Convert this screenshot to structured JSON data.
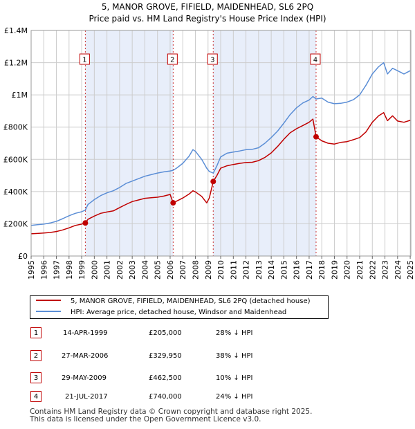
{
  "title": {
    "line1": "5, MANOR GROVE, FIFIELD, MAIDENHEAD, SL6 2PQ",
    "line2": "Price paid vs. HM Land Registry's House Price Index (HPI)"
  },
  "colors": {
    "price_line": "#c00000",
    "hpi_line": "#5b8ed6",
    "shade": "#e8eefa",
    "grid": "#cccccc",
    "marker_border": "#c00000",
    "marker_fill": "#c00000"
  },
  "chart_data": {
    "type": "line",
    "title": "5, MANOR GROVE, FIFIELD, MAIDENHEAD, SL6 2PQ",
    "subtitle": "Price paid vs. HM Land Registry's House Price Index (HPI)",
    "xlabel": "",
    "ylabel": "",
    "xlim": [
      1995.0,
      2025.05
    ],
    "ylim": [
      0,
      1400000
    ],
    "x_ticks": [
      1995,
      1996,
      1997,
      1998,
      1999,
      2000,
      2001,
      2002,
      2003,
      2004,
      2005,
      2006,
      2007,
      2008,
      2009,
      2010,
      2011,
      2012,
      2013,
      2014,
      2015,
      2016,
      2017,
      2018,
      2019,
      2020,
      2021,
      2022,
      2023,
      2024,
      2025
    ],
    "x_tick_labels": [
      "1995",
      "1996",
      "1997",
      "1998",
      "1999",
      "2000",
      "2001",
      "2002",
      "2003",
      "2004",
      "2005",
      "2006",
      "2007",
      "2008",
      "2009",
      "2010",
      "2011",
      "2012",
      "2013",
      "2014",
      "2015",
      "2016",
      "2017",
      "2018",
      "2019",
      "2020",
      "2021",
      "2022",
      "2023",
      "2024",
      "2025"
    ],
    "y_ticks": [
      0,
      200000,
      400000,
      600000,
      800000,
      1000000,
      1200000,
      1400000
    ],
    "y_tick_labels": [
      "£0",
      "£200K",
      "£400K",
      "£600K",
      "£800K",
      "£1M",
      "£1.2M",
      "£1.4M"
    ],
    "grid": true,
    "series": [
      {
        "name": "5, MANOR GROVE, FIFIELD, MAIDENHEAD, SL6 2PQ (detached house)",
        "x": [
          1995.0,
          1995.5,
          1996.0,
          1996.5,
          1997.0,
          1997.5,
          1998.0,
          1998.5,
          1999.0,
          1999.29,
          1999.5,
          2000.0,
          2000.5,
          2001.0,
          2001.5,
          2002.0,
          2002.5,
          2003.0,
          2003.5,
          2004.0,
          2004.5,
          2005.0,
          2005.5,
          2006.0,
          2006.24,
          2006.5,
          2007.0,
          2007.5,
          2007.8,
          2008.0,
          2008.5,
          2008.9,
          2009.1,
          2009.41,
          2009.7,
          2010.0,
          2010.5,
          2011.0,
          2011.5,
          2012.0,
          2012.5,
          2013.0,
          2013.5,
          2014.0,
          2014.5,
          2015.0,
          2015.5,
          2016.0,
          2016.5,
          2017.0,
          2017.3,
          2017.55,
          2018.0,
          2018.5,
          2019.0,
          2019.5,
          2020.0,
          2020.5,
          2021.0,
          2021.5,
          2022.0,
          2022.5,
          2022.9,
          2023.2,
          2023.6,
          2024.0,
          2024.5,
          2025.0
        ],
        "values": [
          138000,
          140000,
          143000,
          146000,
          152000,
          162000,
          175000,
          190000,
          198000,
          205000,
          228000,
          248000,
          265000,
          273000,
          280000,
          300000,
          320000,
          338000,
          348000,
          358000,
          362000,
          365000,
          372000,
          382000,
          329950,
          340000,
          360000,
          385000,
          405000,
          398000,
          370000,
          330000,
          360000,
          462500,
          500000,
          545000,
          560000,
          568000,
          575000,
          580000,
          582000,
          592000,
          612000,
          640000,
          680000,
          725000,
          765000,
          790000,
          810000,
          830000,
          850000,
          740000,
          715000,
          700000,
          695000,
          705000,
          710000,
          722000,
          735000,
          770000,
          830000,
          870000,
          890000,
          840000,
          870000,
          838000,
          830000,
          842000
        ]
      },
      {
        "name": "HPI: Average price, detached house, Windsor and Maidenhead",
        "x": [
          1995.0,
          1995.5,
          1996.0,
          1996.5,
          1997.0,
          1997.5,
          1998.0,
          1998.5,
          1999.0,
          1999.29,
          1999.5,
          2000.0,
          2000.5,
          2001.0,
          2001.5,
          2002.0,
          2002.5,
          2003.0,
          2003.5,
          2004.0,
          2004.5,
          2005.0,
          2005.5,
          2006.0,
          2006.24,
          2006.5,
          2007.0,
          2007.5,
          2007.8,
          2008.0,
          2008.5,
          2008.9,
          2009.1,
          2009.41,
          2009.7,
          2010.0,
          2010.5,
          2011.0,
          2011.5,
          2012.0,
          2012.5,
          2013.0,
          2013.5,
          2014.0,
          2014.5,
          2015.0,
          2015.5,
          2016.0,
          2016.5,
          2017.0,
          2017.3,
          2017.55,
          2018.0,
          2018.5,
          2019.0,
          2019.5,
          2020.0,
          2020.5,
          2021.0,
          2021.5,
          2022.0,
          2022.5,
          2022.9,
          2023.2,
          2023.6,
          2024.0,
          2024.5,
          2025.0
        ],
        "values": [
          190000,
          194000,
          198000,
          205000,
          215000,
          232000,
          250000,
          265000,
          275000,
          285000,
          320000,
          350000,
          375000,
          392000,
          405000,
          425000,
          450000,
          465000,
          480000,
          495000,
          505000,
          515000,
          522000,
          528000,
          532000,
          545000,
          575000,
          620000,
          660000,
          650000,
          600000,
          545000,
          525000,
          515000,
          560000,
          615000,
          638000,
          645000,
          652000,
          660000,
          662000,
          672000,
          700000,
          735000,
          775000,
          825000,
          878000,
          920000,
          950000,
          968000,
          990000,
          975000,
          980000,
          955000,
          945000,
          948000,
          955000,
          970000,
          1000000,
          1060000,
          1130000,
          1175000,
          1200000,
          1130000,
          1165000,
          1150000,
          1130000,
          1150000
        ]
      }
    ],
    "sales": [
      {
        "label": "1",
        "x": 1999.29,
        "value": 205000
      },
      {
        "label": "2",
        "x": 2006.24,
        "value": 329950
      },
      {
        "label": "3",
        "x": 2009.41,
        "value": 462500
      },
      {
        "label": "4",
        "x": 2017.55,
        "value": 740000
      }
    ],
    "shaded_ranges": [
      [
        1999.29,
        2006.24
      ],
      [
        2009.41,
        2017.55
      ]
    ],
    "legend_position": "below"
  },
  "legend": {
    "price_label": "5, MANOR GROVE, FIFIELD, MAIDENHEAD, SL6 2PQ (detached house)",
    "hpi_label": "HPI: Average price, detached house, Windsor and Maidenhead"
  },
  "transactions": [
    {
      "num": "1",
      "date": "14-APR-1999",
      "price": "£205,000",
      "hpi": "28% ↓ HPI"
    },
    {
      "num": "2",
      "date": "27-MAR-2006",
      "price": "£329,950",
      "hpi": "38% ↓ HPI"
    },
    {
      "num": "3",
      "date": "29-MAY-2009",
      "price": "£462,500",
      "hpi": "10% ↓ HPI"
    },
    {
      "num": "4",
      "date": "21-JUL-2017",
      "price": "£740,000",
      "hpi": "24% ↓ HPI"
    }
  ],
  "footer": {
    "line1": "Contains HM Land Registry data © Crown copyright and database right 2025.",
    "line2": "This data is licensed under the Open Government Licence v3.0."
  }
}
